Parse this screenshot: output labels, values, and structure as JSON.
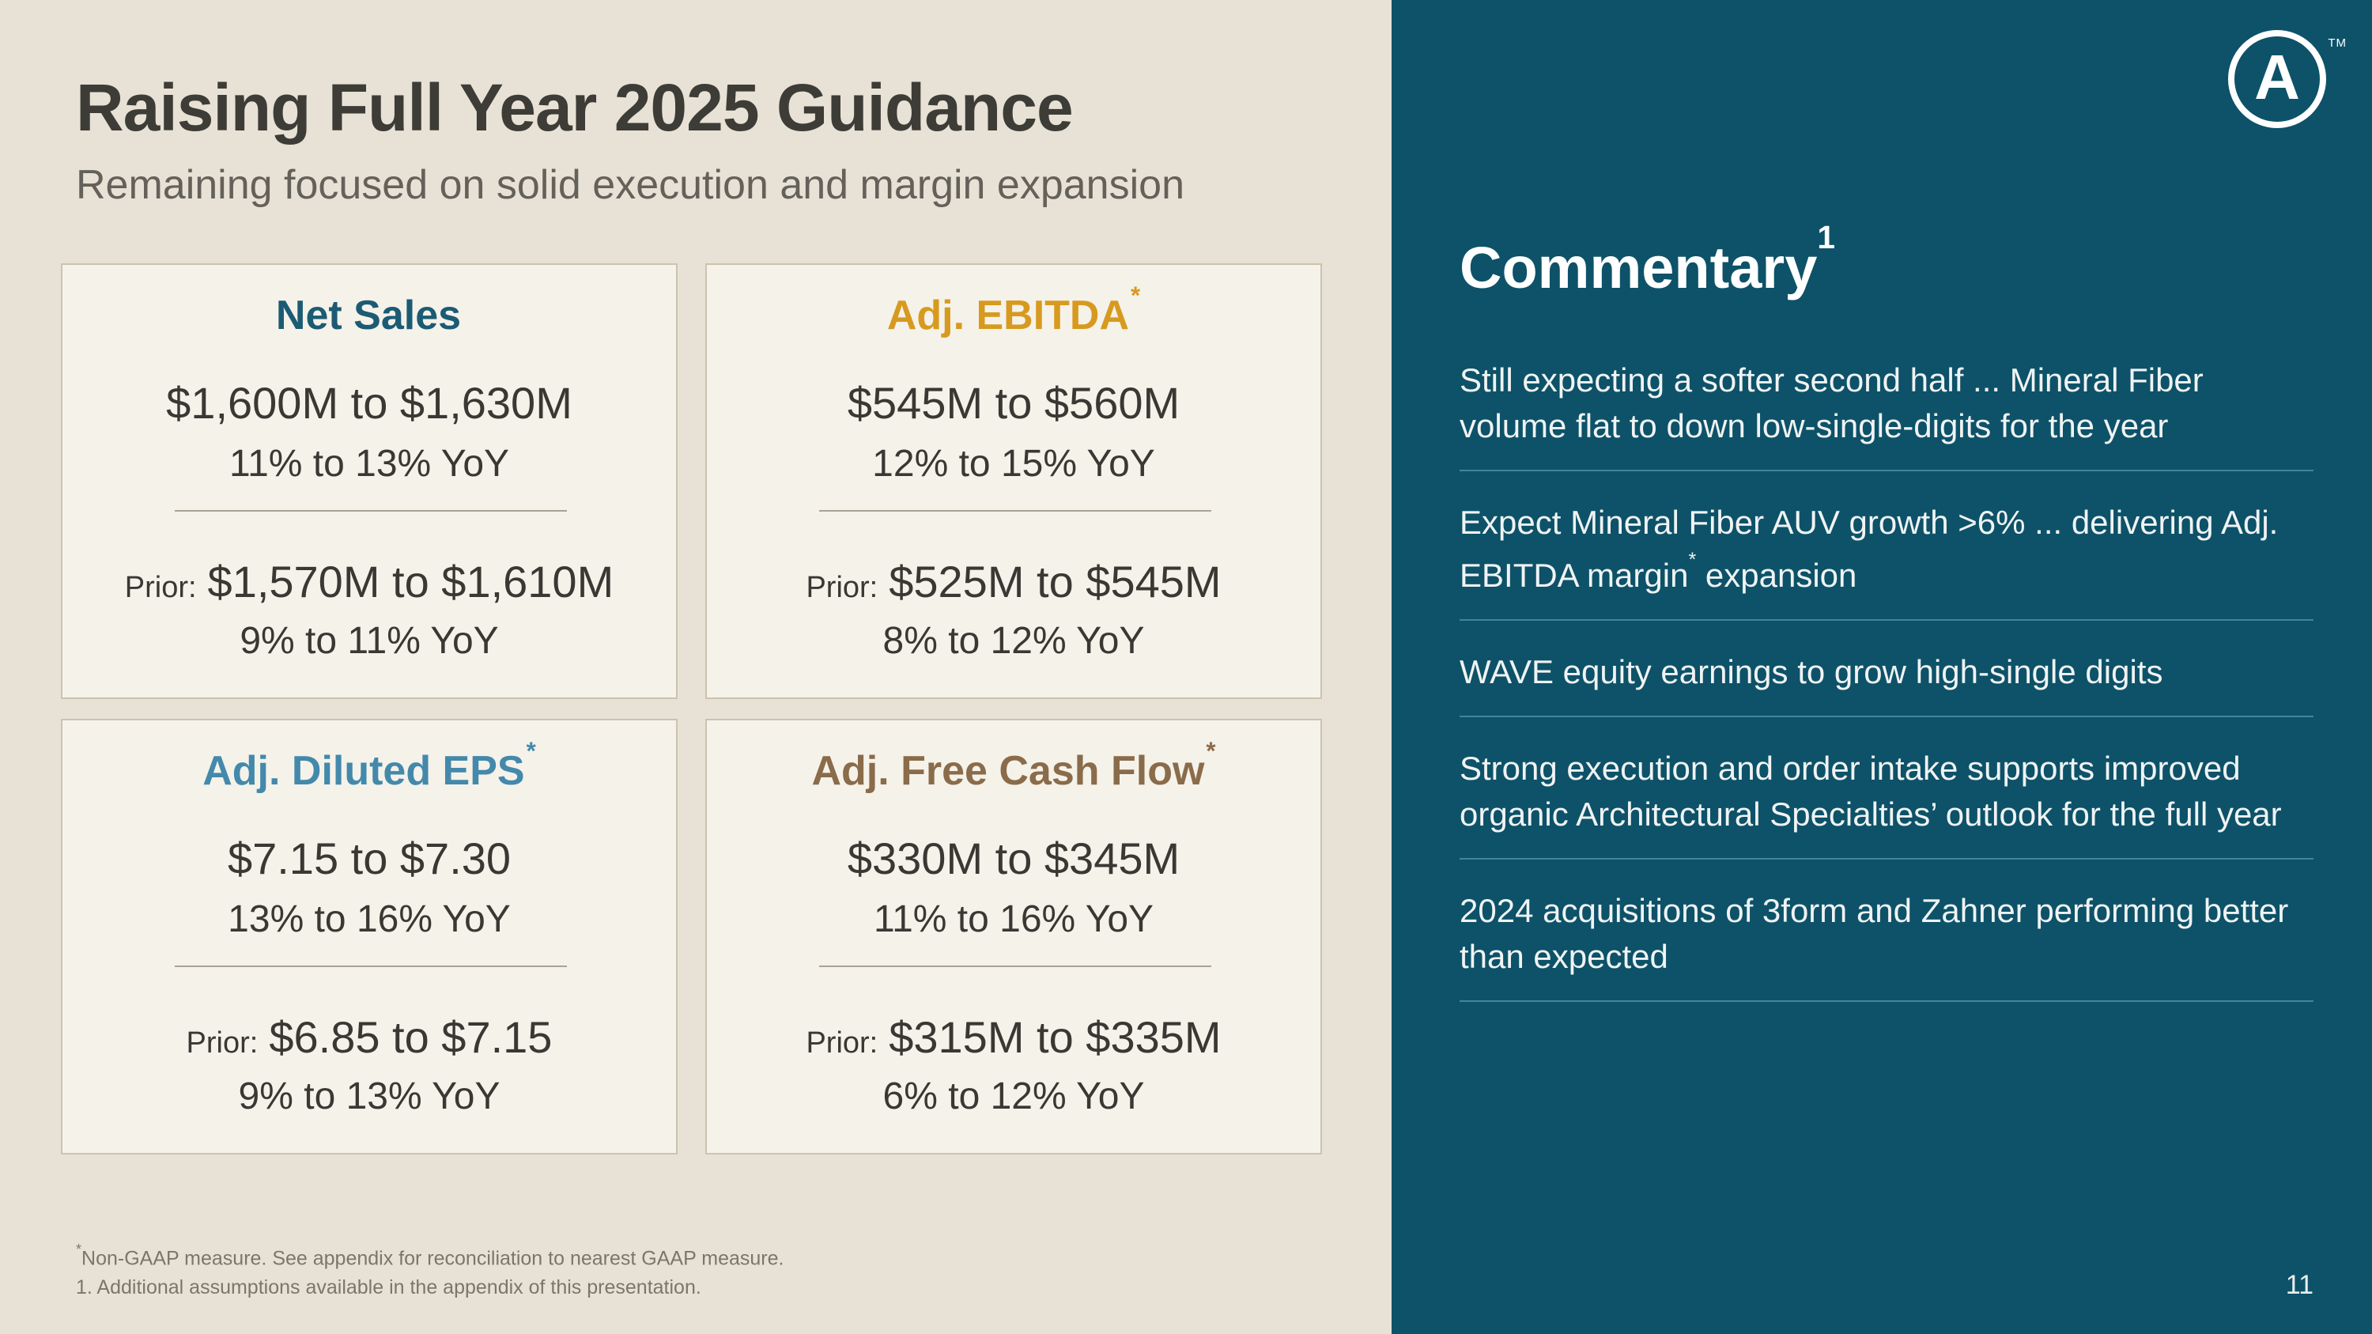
{
  "header": {
    "title": "Raising Full Year 2025 Guidance",
    "subtitle": "Remaining focused on solid execution and margin expansion"
  },
  "cards": [
    {
      "title": "Net Sales",
      "asterisk": "",
      "accent_color": "#1b5b74",
      "value": "$1,600M to $1,630M",
      "yoy": "11% to 13% YoY",
      "prior_label": "Prior:",
      "prior_value": "$1,570M to $1,610M",
      "prior_yoy": "9% to 11% YoY"
    },
    {
      "title": "Adj. EBITDA",
      "asterisk": "*",
      "accent_color": "#d79a1f",
      "value": "$545M to $560M",
      "yoy": "12% to 15% YoY",
      "prior_label": "Prior:",
      "prior_value": "$525M to $545M",
      "prior_yoy": "8% to 12% YoY"
    },
    {
      "title": "Adj. Diluted EPS",
      "asterisk": "*",
      "accent_color": "#4389ab",
      "value": "$7.15 to $7.30",
      "yoy": "13% to 16% YoY",
      "prior_label": "Prior:",
      "prior_value": "$6.85 to $7.15",
      "prior_yoy": "9% to 13% YoY"
    },
    {
      "title": "Adj. Free Cash Flow",
      "asterisk": "*",
      "accent_color": "#8a6b4a",
      "value": "$330M to $345M",
      "yoy": "11% to 16% YoY",
      "prior_label": "Prior:",
      "prior_value": "$315M to $335M",
      "prior_yoy": "6% to 12% YoY"
    }
  ],
  "commentary": {
    "title": "Commentary",
    "title_superscript": "1",
    "items": [
      {
        "text": "Still expecting a softer second half ... Mineral Fiber volume flat to down low-single-digits for the year"
      },
      {
        "pre": "Expect Mineral Fiber AUV growth >6% ... delivering Adj. EBITDA margin",
        "sup": "*",
        "post": " expansion"
      },
      {
        "text": "WAVE equity earnings to grow high-single digits"
      },
      {
        "text": "Strong execution and order intake supports improved organic Architectural Specialties’ outlook for the full year"
      },
      {
        "text": "2024 acquisitions of 3form and Zahner performing better than expected"
      }
    ]
  },
  "footnotes": {
    "asterisk": "*",
    "line1": "Non-GAAP measure. See appendix for reconciliation to nearest GAAP measure.",
    "line2": "1. Additional assumptions available in the appendix of this presentation."
  },
  "logo": {
    "letter": "A",
    "tm": "TM"
  },
  "page_number": "11",
  "brand_colors": {
    "panel_teal": "#0d5268",
    "divider_teal": "#41879c",
    "background_beige": "#e8e2d6",
    "card_cream": "#f5f2ea",
    "card_border_tan": "#ccc3ae"
  }
}
